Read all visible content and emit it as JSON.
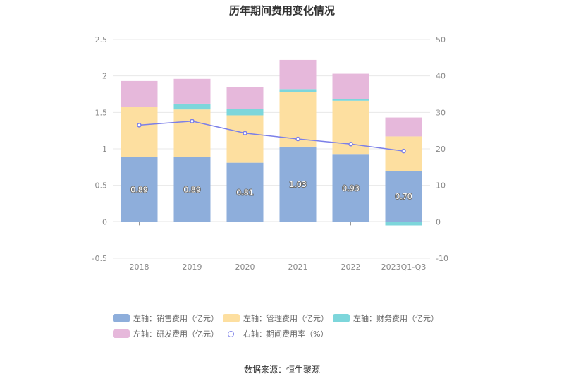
{
  "title": "历年期间费用变化情况",
  "source_label": "数据来源：恒生聚源",
  "chart_data": {
    "type": "bar",
    "stacked": true,
    "title": "历年期间费用变化情况",
    "categories": [
      "2018",
      "2019",
      "2020",
      "2021",
      "2022",
      "2023Q1-Q3"
    ],
    "series": [
      {
        "name": "左轴：销售费用（亿元）",
        "axis": "left",
        "type": "bar",
        "color": "#8EAEDB",
        "values": [
          0.89,
          0.89,
          0.81,
          1.03,
          0.93,
          0.7
        ],
        "labels": [
          "0.89",
          "0.89",
          "0.81",
          "1.03",
          "0.93",
          "0.70"
        ]
      },
      {
        "name": "左轴：管理费用（亿元）",
        "axis": "left",
        "type": "bar",
        "color": "#FDDFA0",
        "values": [
          0.69,
          0.65,
          0.65,
          0.75,
          0.73,
          0.47
        ]
      },
      {
        "name": "左轴：财务费用（亿元）",
        "axis": "left",
        "type": "bar",
        "color": "#7DD6DB",
        "values": [
          0.0,
          0.08,
          0.09,
          0.04,
          0.02,
          -0.05
        ]
      },
      {
        "name": "左轴：研发费用（亿元）",
        "axis": "left",
        "type": "bar",
        "color": "#E6B8DB",
        "values": [
          0.35,
          0.34,
          0.3,
          0.4,
          0.35,
          0.26
        ]
      },
      {
        "name": "右轴：期间费用率（%）",
        "axis": "right",
        "type": "line",
        "color": "#7B7FE8",
        "values": [
          26.5,
          27.6,
          24.3,
          22.7,
          21.3,
          19.4
        ]
      }
    ],
    "y_left": {
      "min": -0.5,
      "max": 2.5,
      "ticks": [
        "-0.5",
        "0",
        "0.5",
        "1",
        "1.5",
        "2",
        "2.5"
      ]
    },
    "y_right": {
      "min": -10,
      "max": 50,
      "ticks": [
        "-10",
        "0",
        "10",
        "20",
        "30",
        "40",
        "50"
      ]
    },
    "grid": true,
    "legend_position": "bottom"
  }
}
